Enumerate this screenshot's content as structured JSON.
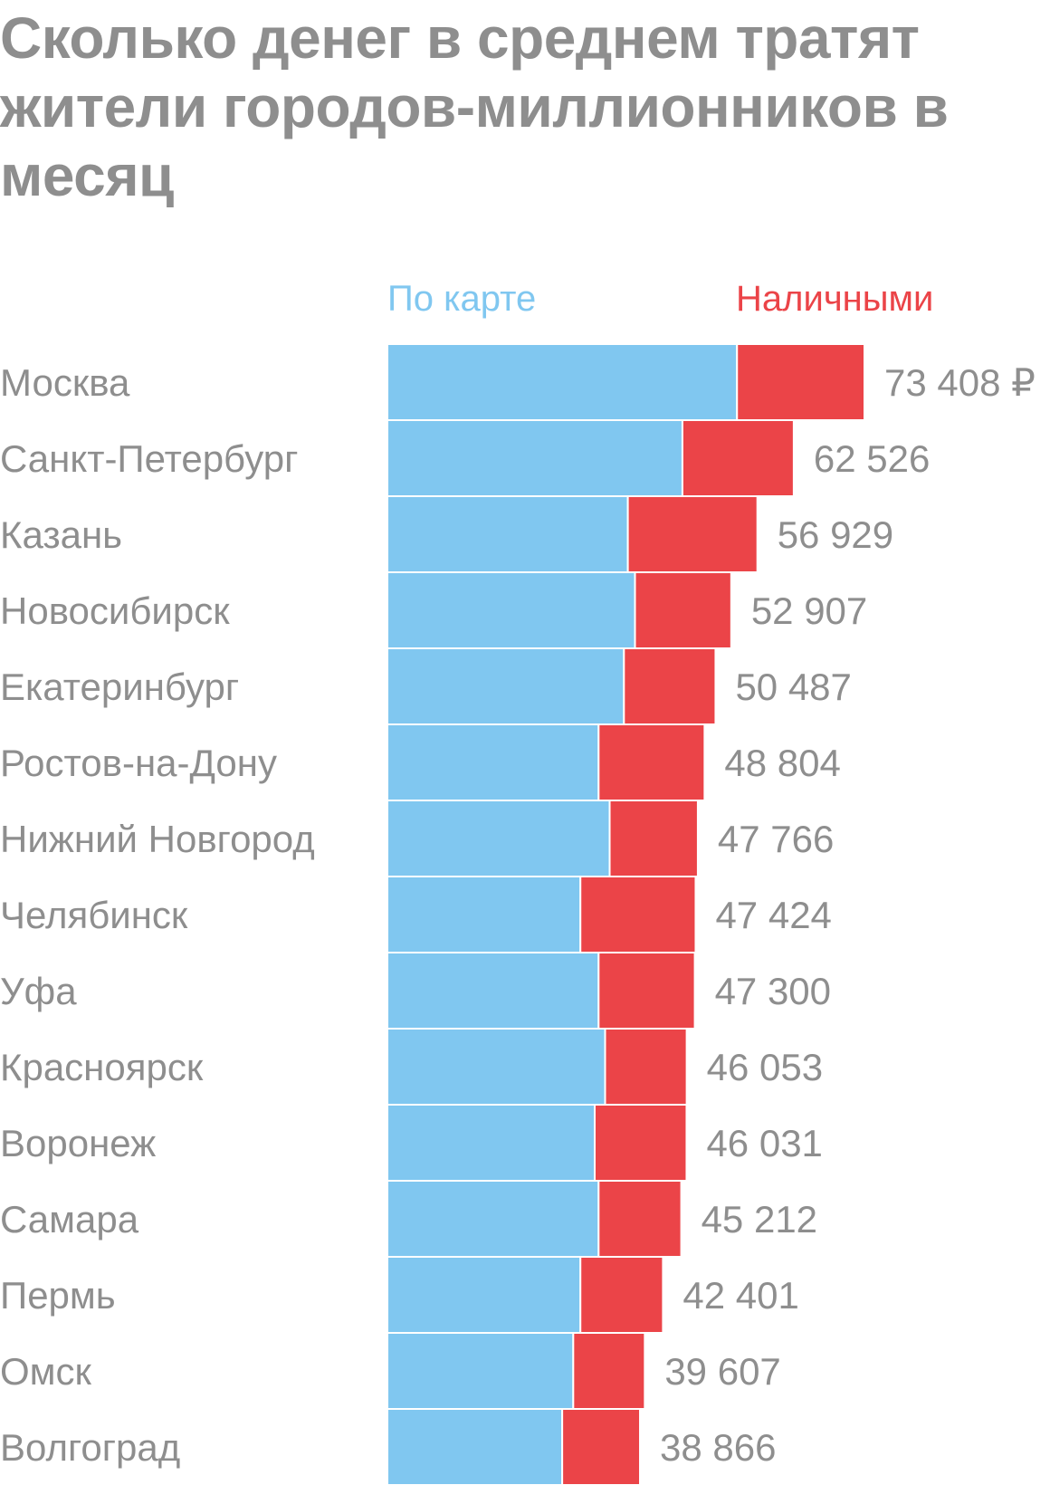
{
  "chart_data": {
    "type": "bar",
    "orientation": "horizontal",
    "stacked": true,
    "title": "Сколько денег в среднем тратят жители городов-миллионников в месяц",
    "categories": [
      "Москва",
      "Санкт-Петербург",
      "Казань",
      "Новосибирск",
      "Екатеринбург",
      "Ростов-на-Дону",
      "Нижний Новгород",
      "Челябинск",
      "Уфа",
      "Красноярск",
      "Воронеж",
      "Самара",
      "Пермь",
      "Омск",
      "Волгоград"
    ],
    "series": [
      {
        "name": "По карте",
        "color": "#80c7f0",
        "values": [
          53800,
          45400,
          37000,
          38100,
          36400,
          32500,
          34200,
          29700,
          32500,
          33500,
          31900,
          32500,
          29700,
          28600,
          26900
        ]
      },
      {
        "name": "Наличными",
        "color": "#eb4448",
        "values": [
          19608,
          17126,
          19929,
          14807,
          14087,
          16304,
          13566,
          17724,
          14800,
          12553,
          14131,
          12712,
          12701,
          11007,
          11966
        ]
      }
    ],
    "totals": [
      73408,
      62526,
      56929,
      52907,
      50487,
      48804,
      47766,
      47424,
      47300,
      46053,
      46031,
      45212,
      42401,
      39607,
      38866
    ],
    "value_labels": [
      "73 408 ₽",
      "62 526",
      "56 929",
      "52 907",
      "50 487",
      "48 804",
      "47 766",
      "47 424",
      "47 300",
      "46 053",
      "46 031",
      "45 212",
      "42 401",
      "39 607",
      "38 866"
    ],
    "xlim": [
      0,
      73408
    ],
    "grid": false,
    "legend": "top"
  }
}
